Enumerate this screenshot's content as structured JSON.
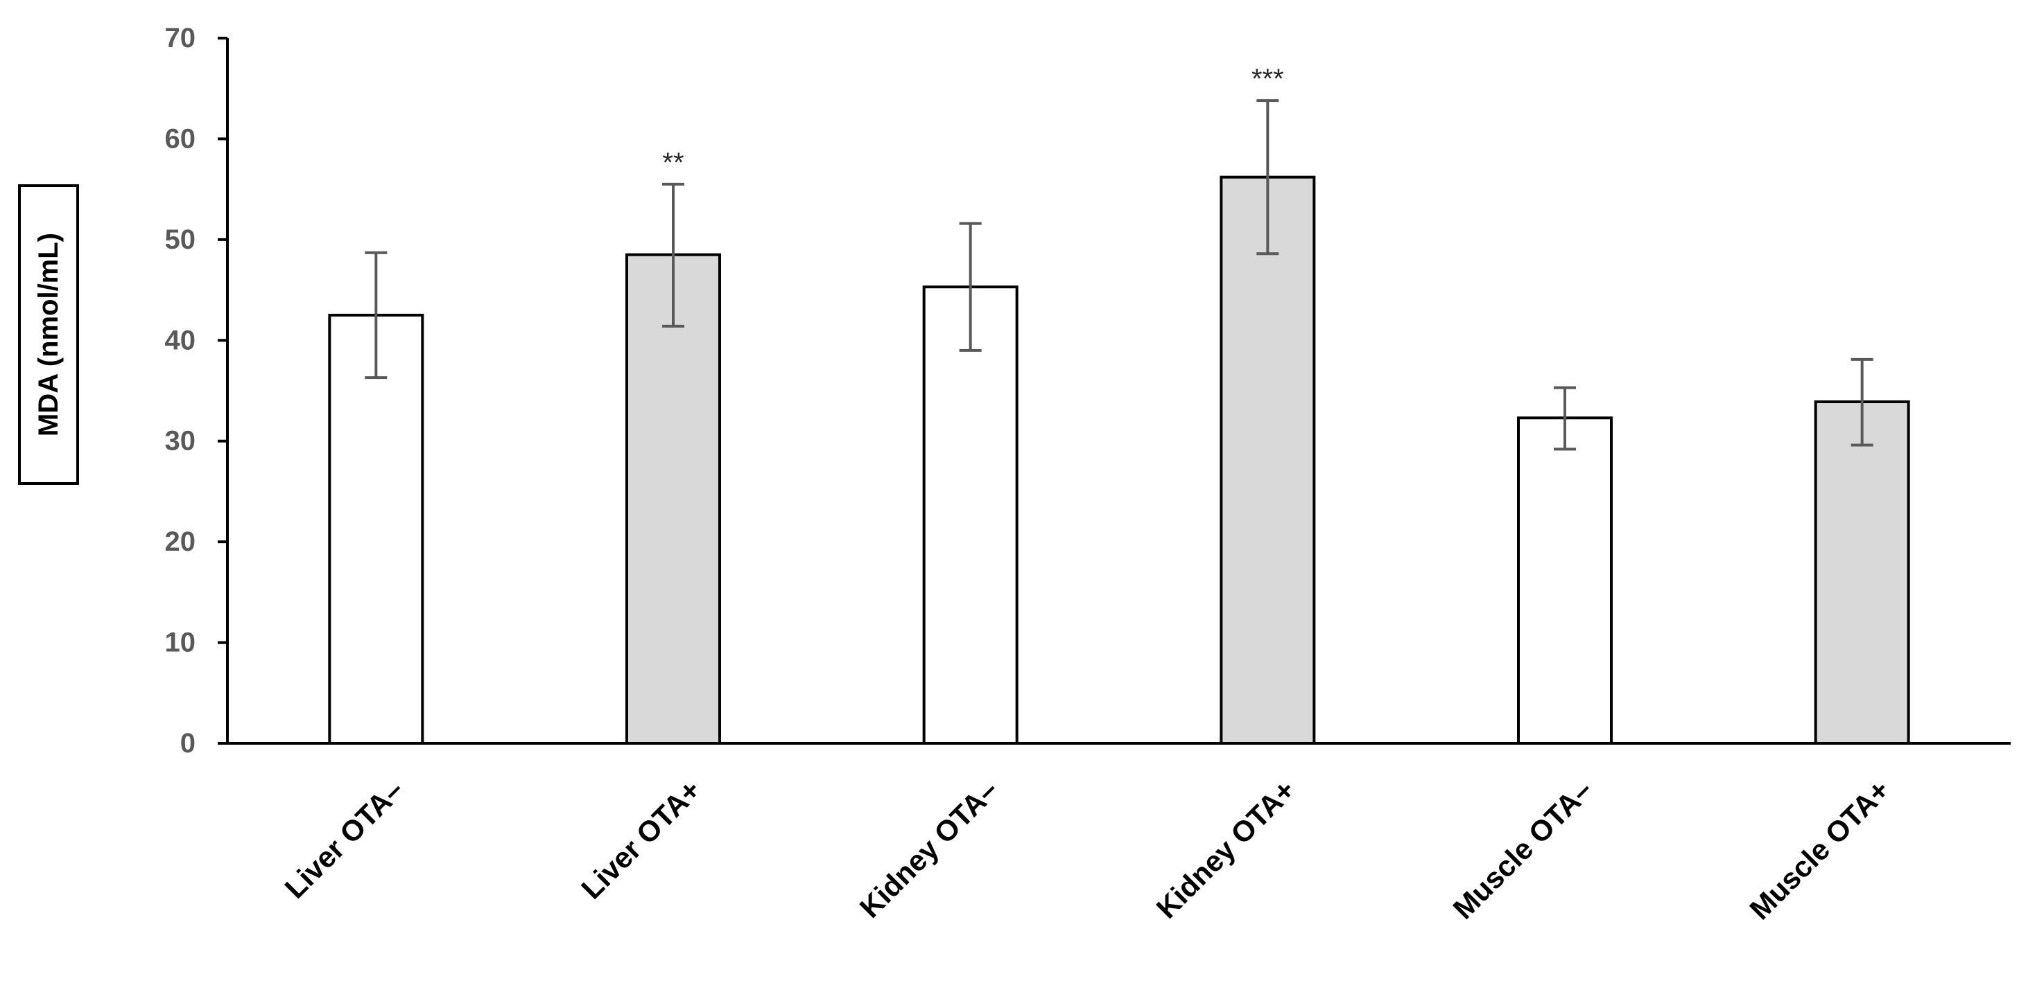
{
  "chart_data": {
    "type": "bar",
    "categories": [
      "Liver OTA–",
      "Liver OTA+",
      "Kidney OTA–",
      "Kidney OTA+",
      "Muscle OTA–",
      "Muscle OTA+"
    ],
    "values": [
      42.5,
      48.5,
      45.3,
      56.2,
      32.3,
      33.9
    ],
    "error_low": [
      36.3,
      41.4,
      39.0,
      48.6,
      29.2,
      29.6
    ],
    "error_high": [
      48.7,
      55.5,
      51.6,
      63.8,
      35.3,
      38.1
    ],
    "significance": [
      "",
      "**",
      "",
      "***",
      "",
      ""
    ],
    "bar_colors": [
      "#ffffff",
      "#d9d9d9",
      "#ffffff",
      "#d9d9d9",
      "#ffffff",
      "#d9d9d9"
    ],
    "xlabel": "",
    "ylabel": "MDA (nmol/mL)",
    "ylim": [
      0,
      70
    ],
    "yticks": [
      0,
      10,
      20,
      30,
      40,
      50,
      60,
      70
    ],
    "grid": false,
    "legend": "none"
  }
}
